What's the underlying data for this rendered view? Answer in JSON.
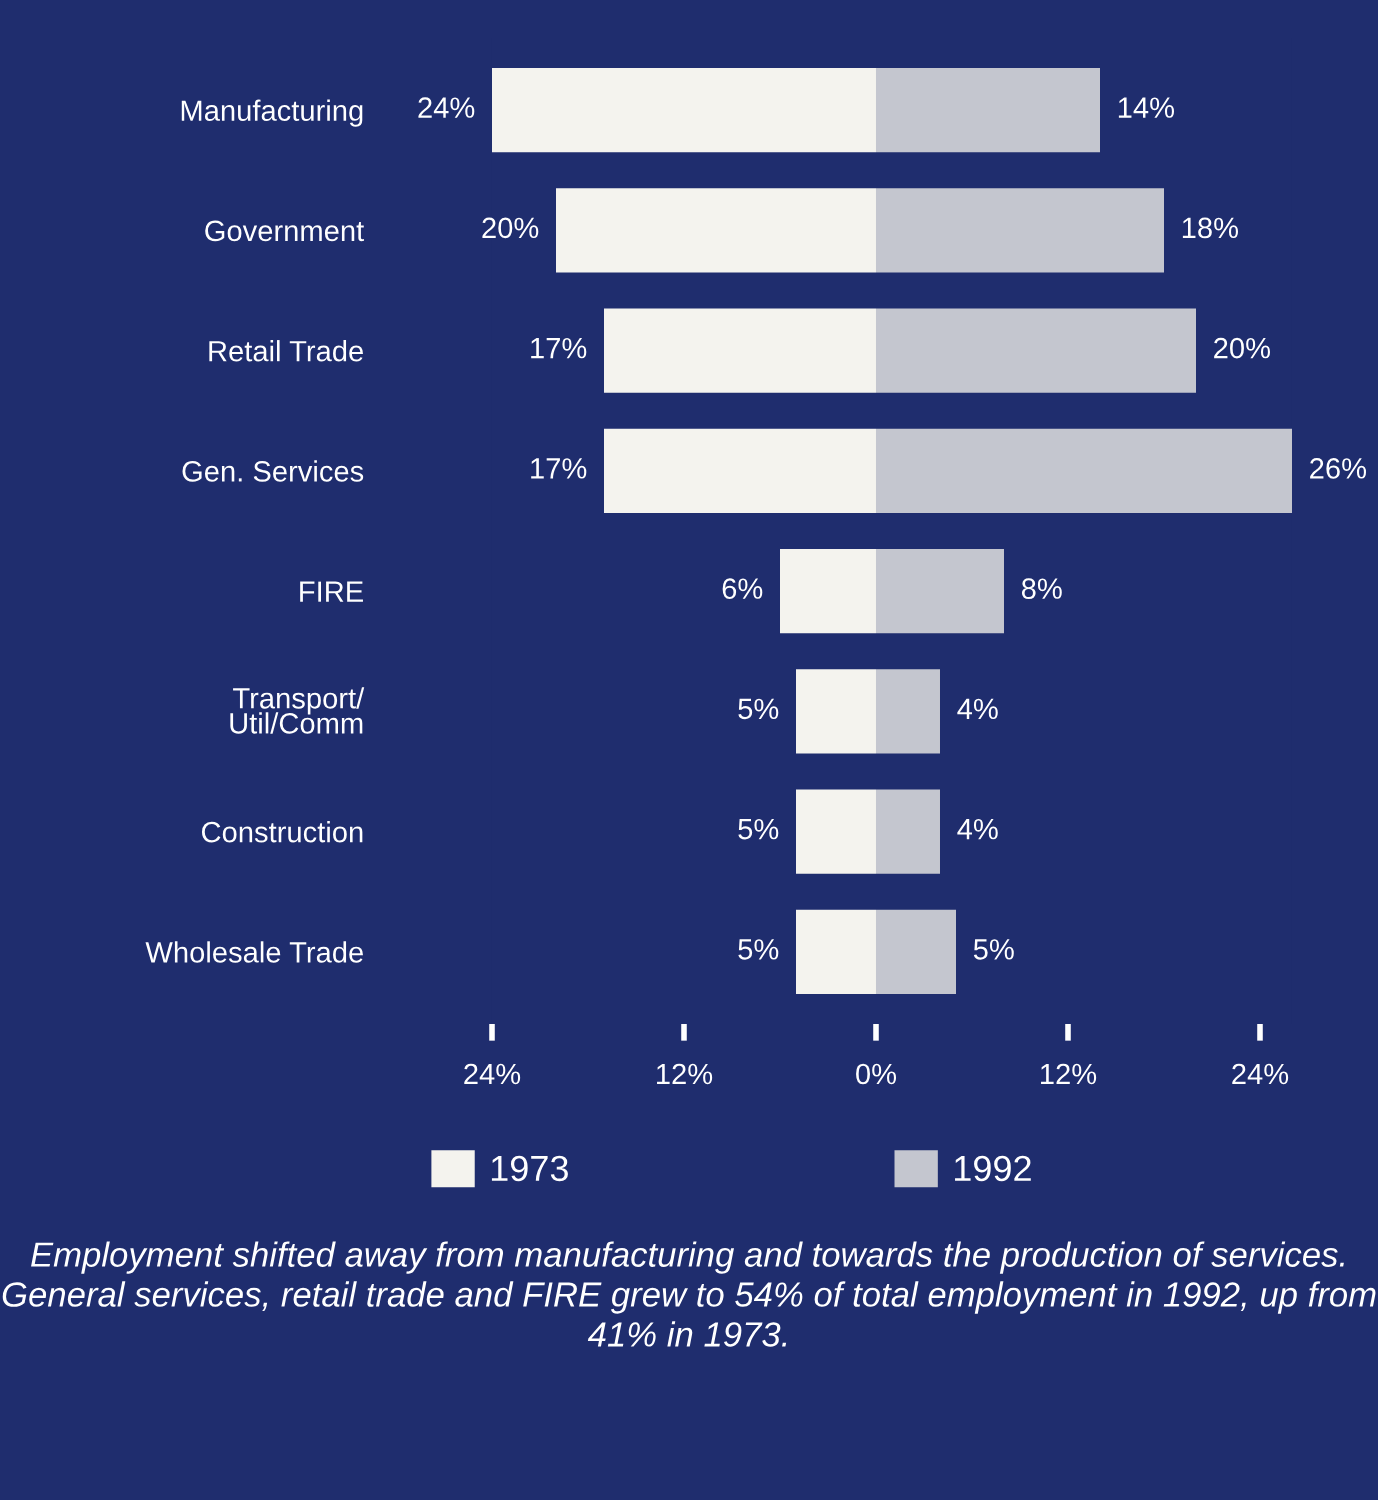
{
  "chart_data": {
    "type": "bar",
    "orientation": "horizontal",
    "categories": [
      "Manufacturing",
      "Government",
      "Retail Trade",
      "Gen. Services",
      "FIRE",
      "Transport/\nUtil/Comm",
      "Construction",
      "Wholesale Trade"
    ],
    "series": [
      {
        "name": "1973",
        "color": "#f4f3ee",
        "values": [
          24,
          20,
          17,
          17,
          6,
          5,
          5,
          5
        ],
        "base": [
          -24,
          -20,
          -17,
          -17,
          -6,
          -5,
          -5,
          -5
        ],
        "value_labels": [
          "24%",
          "20%",
          "17%",
          "17%",
          "6%",
          "5%",
          "5%",
          "5%"
        ]
      },
      {
        "name": "1992",
        "color": "#c4c6cf",
        "values": [
          14,
          18,
          20,
          26,
          8,
          4,
          4,
          5
        ],
        "value_labels": [
          "14%",
          "18%",
          "20%",
          "26%",
          "8%",
          "4%",
          "4%",
          "5%"
        ]
      }
    ],
    "xlim": [
      -24,
      26
    ],
    "xticks": [
      {
        "value": -24,
        "label": "24%"
      },
      {
        "value": -12,
        "label": "12%"
      },
      {
        "value": 0,
        "label": "0%"
      },
      {
        "value": 12,
        "label": "12%"
      },
      {
        "value": 24,
        "label": "24%"
      }
    ],
    "grid": false,
    "legend": "bottom",
    "annotations": [
      "Employment shifted away from manufacturing and towards the production of services. General services, retail trade and FIRE grew to 54% of total employment in 1992, up from 41% in 1973."
    ]
  }
}
